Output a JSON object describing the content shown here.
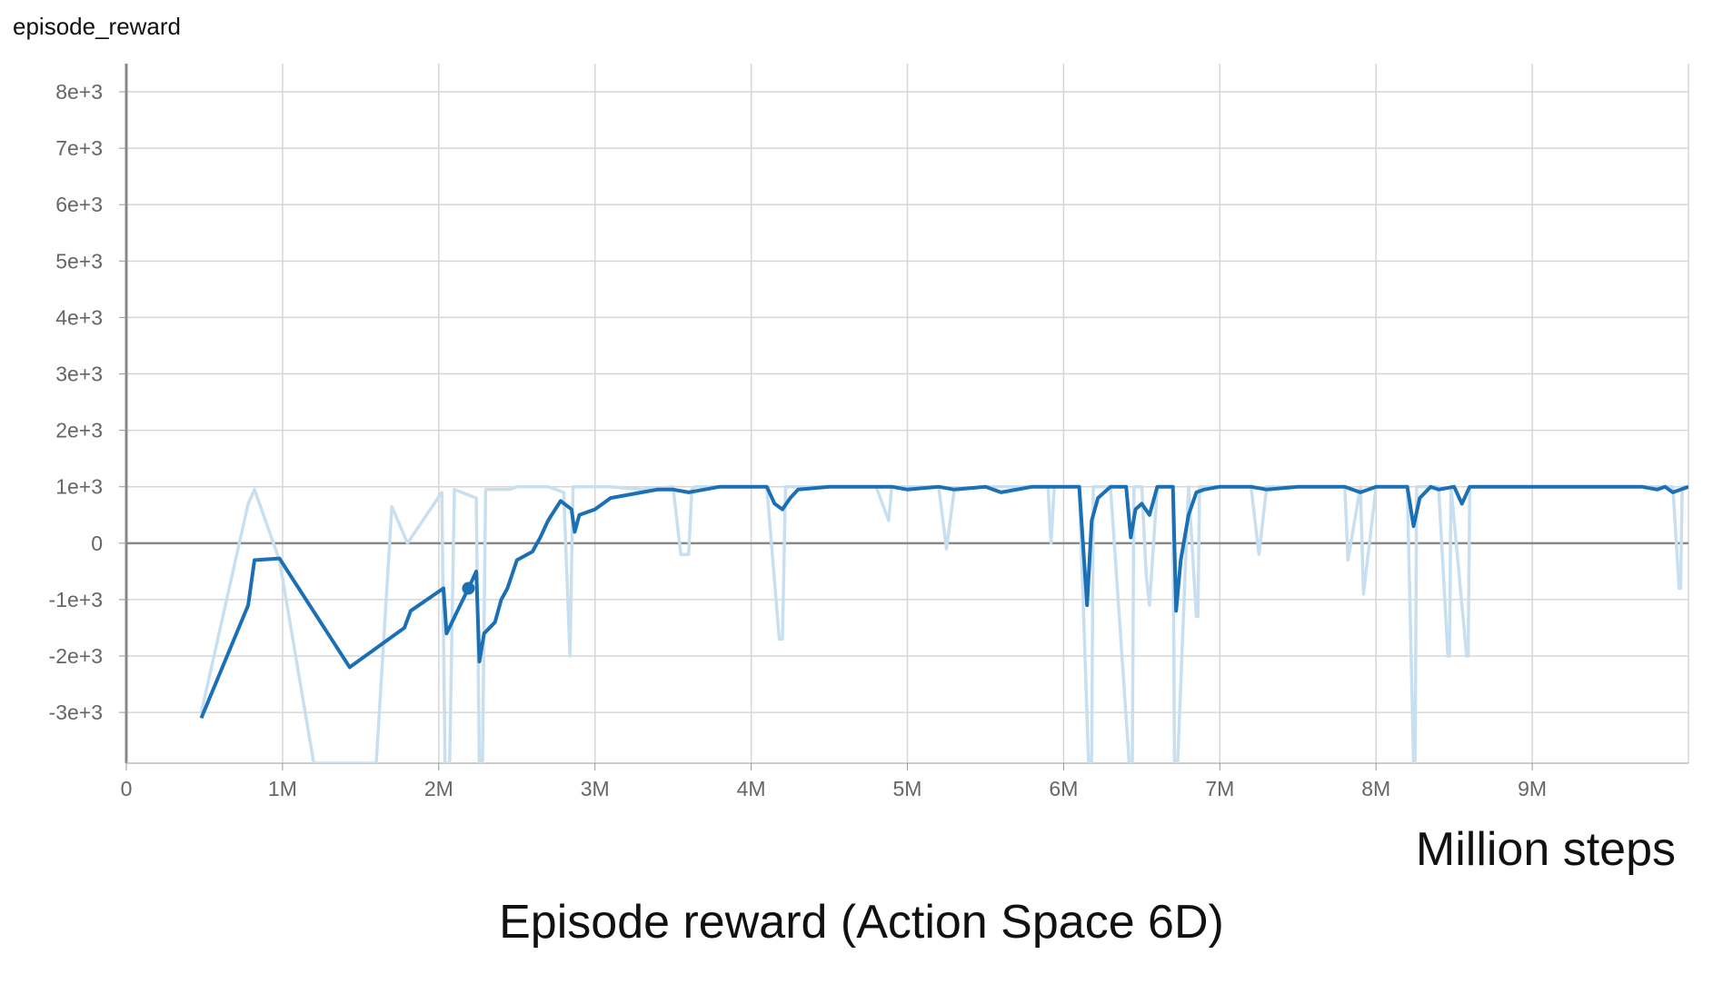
{
  "panel_title": "episode_reward",
  "caption": "Episode reward (Action Space 6D)",
  "chart_data": {
    "type": "line",
    "title": "episode_reward",
    "xlabel": "Million steps",
    "ylabel": "",
    "xlim": [
      0,
      10
    ],
    "ylim": [
      -3900,
      8500
    ],
    "x_ticks": [
      0,
      1,
      2,
      3,
      4,
      5,
      6,
      7,
      8,
      9
    ],
    "x_tick_labels": [
      "0",
      "1M",
      "2M",
      "3M",
      "4M",
      "5M",
      "6M",
      "7M",
      "8M",
      "9M"
    ],
    "y_ticks": [
      -3000,
      -2000,
      -1000,
      0,
      1000,
      2000,
      3000,
      4000,
      5000,
      6000,
      7000,
      8000
    ],
    "y_tick_labels": [
      "-3e+3",
      "-2e+3",
      "-1e+3",
      "0",
      "1e+3",
      "2e+3",
      "3e+3",
      "4e+3",
      "5e+3",
      "6e+3",
      "7e+3",
      "8e+3"
    ],
    "grid": true,
    "colors": {
      "smoothed": "#1a6fb5",
      "raw": "#c8dff0",
      "grid": "#d6d6d6",
      "zero_line": "#888888"
    },
    "highlight_point": {
      "x": 2.19,
      "y": -800
    },
    "series": [
      {
        "role": "raw",
        "x": [
          0.48,
          0.78,
          0.82,
          0.98,
          1.2,
          1.35,
          1.6,
          1.7,
          1.8,
          2.02,
          2.04,
          2.07,
          2.1,
          2.1,
          2.24,
          2.26,
          2.28,
          2.3,
          2.32,
          2.45,
          2.5,
          2.7,
          2.8,
          2.84,
          2.86,
          2.88,
          3.0,
          3.1,
          3.3,
          3.5,
          3.55,
          3.6,
          3.62,
          3.64,
          3.8,
          4.0,
          4.1,
          4.18,
          4.2,
          4.22,
          4.4,
          4.6,
          4.8,
          4.88,
          4.9,
          5.0,
          5.2,
          5.25,
          5.3,
          5.5,
          5.6,
          5.8,
          5.9,
          5.92,
          5.94,
          6.1,
          6.16,
          6.17,
          6.18,
          6.19,
          6.3,
          6.42,
          6.43,
          6.44,
          6.45,
          6.5,
          6.53,
          6.55,
          6.6,
          6.7,
          6.71,
          6.72,
          6.73,
          6.8,
          6.85,
          6.86,
          6.87,
          6.9,
          7.0,
          7.2,
          7.25,
          7.3,
          7.4,
          7.5,
          7.8,
          7.82,
          7.9,
          7.92,
          8.0,
          8.2,
          8.24,
          8.25,
          8.26,
          8.4,
          8.46,
          8.47,
          8.48,
          8.58,
          8.59,
          8.6,
          8.7,
          8.8,
          9.0,
          9.1,
          9.2,
          9.5,
          9.6,
          9.7,
          9.8,
          9.82,
          9.84,
          9.9,
          9.94,
          9.95,
          9.96,
          10.0
        ],
        "y": [
          -3000,
          700,
          950,
          -300,
          -3900,
          -3900,
          -3900,
          650,
          0,
          900,
          -3900,
          -3900,
          950,
          950,
          800,
          -3900,
          -3900,
          950,
          950,
          950,
          1000,
          1000,
          900,
          -2000,
          1000,
          1000,
          1000,
          1000,
          950,
          1000,
          -200,
          -200,
          950,
          1000,
          1000,
          1000,
          1000,
          -1700,
          -1700,
          1000,
          1000,
          1000,
          1000,
          400,
          1000,
          1000,
          1000,
          -100,
          950,
          1000,
          1000,
          1000,
          1000,
          0,
          1000,
          1000,
          -3900,
          -3900,
          -3900,
          1000,
          1000,
          -3900,
          -3900,
          -3900,
          1000,
          1000,
          -600,
          -1100,
          1000,
          1000,
          -3900,
          -3900,
          -3900,
          1000,
          -1300,
          -1300,
          1000,
          1000,
          1000,
          1000,
          -200,
          1000,
          1000,
          1000,
          1000,
          -300,
          1000,
          -900,
          1000,
          1000,
          -3900,
          -3900,
          1000,
          1000,
          -2000,
          -2000,
          1000,
          -2000,
          -2000,
          1000,
          1000,
          1000,
          1000,
          1000,
          1000,
          1000,
          1000,
          1000,
          1000,
          1000,
          1000,
          1000,
          -800,
          -800,
          1000,
          1000
        ]
      },
      {
        "role": "smoothed",
        "x": [
          0.48,
          0.78,
          0.82,
          0.98,
          1.43,
          1.78,
          1.82,
          2.03,
          2.05,
          2.12,
          2.19,
          2.24,
          2.26,
          2.29,
          2.36,
          2.4,
          2.44,
          2.5,
          2.6,
          2.65,
          2.7,
          2.78,
          2.85,
          2.87,
          2.9,
          3.0,
          3.1,
          3.2,
          3.3,
          3.4,
          3.5,
          3.6,
          3.7,
          3.8,
          4.0,
          4.1,
          4.15,
          4.2,
          4.25,
          4.3,
          4.5,
          4.7,
          4.9,
          5.0,
          5.2,
          5.3,
          5.5,
          5.6,
          5.8,
          5.9,
          6.0,
          6.1,
          6.15,
          6.18,
          6.22,
          6.3,
          6.4,
          6.43,
          6.46,
          6.5,
          6.55,
          6.6,
          6.65,
          6.7,
          6.72,
          6.75,
          6.8,
          6.85,
          6.9,
          7.0,
          7.2,
          7.3,
          7.5,
          7.8,
          7.9,
          8.0,
          8.2,
          8.24,
          8.28,
          8.35,
          8.4,
          8.5,
          8.55,
          8.6,
          8.7,
          9.0,
          9.2,
          9.5,
          9.7,
          9.8,
          9.85,
          9.9,
          10.0
        ],
        "y": [
          -3100,
          -1100,
          -300,
          -270,
          -2200,
          -1500,
          -1200,
          -800,
          -1600,
          -1200,
          -800,
          -500,
          -2100,
          -1600,
          -1400,
          -1000,
          -800,
          -300,
          -150,
          100,
          400,
          750,
          600,
          200,
          500,
          600,
          800,
          850,
          900,
          950,
          950,
          900,
          950,
          1000,
          1000,
          1000,
          700,
          600,
          800,
          950,
          1000,
          1000,
          1000,
          950,
          1000,
          950,
          1000,
          900,
          1000,
          1000,
          1000,
          1000,
          -1100,
          400,
          800,
          1000,
          1000,
          100,
          600,
          700,
          500,
          1000,
          1000,
          1000,
          -1200,
          -300,
          500,
          900,
          950,
          1000,
          1000,
          950,
          1000,
          1000,
          900,
          1000,
          1000,
          300,
          800,
          1000,
          950,
          1000,
          700,
          1000,
          1000,
          1000,
          1000,
          1000,
          1000,
          950,
          1000,
          900,
          1000
        ]
      }
    ]
  }
}
